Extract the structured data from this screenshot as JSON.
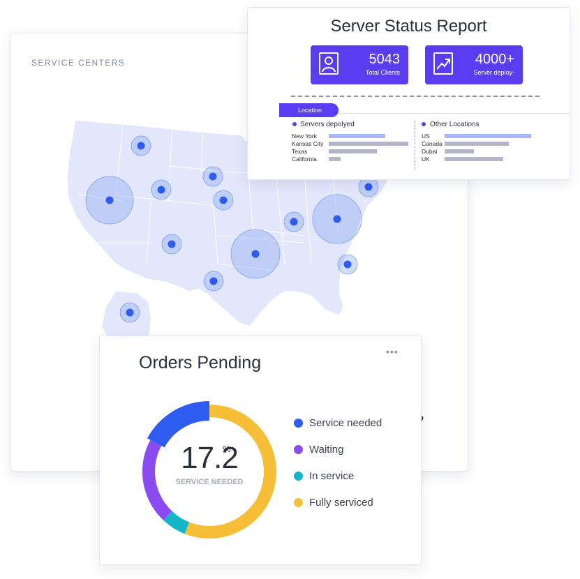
{
  "service_centers": {
    "title": "SERVICE CENTERS",
    "partial_text": "o"
  },
  "server_status": {
    "title": "Server Status Report",
    "stats": [
      {
        "value": "5043",
        "label": "Total Clients",
        "icon": "user-icon"
      },
      {
        "value": "4000+",
        "label": "Server deploy-",
        "icon": "trend-chart-icon"
      }
    ],
    "location_tab": "Location",
    "servers_deployed": {
      "heading": "Servers depolyed",
      "rows": [
        {
          "name": "New York",
          "level": 0.65
        },
        {
          "name": "Kansas City",
          "level": 0.92
        },
        {
          "name": "Texas",
          "level": 0.56
        },
        {
          "name": "California",
          "level": 0.14
        }
      ]
    },
    "other_locations": {
      "heading": "Other Locations",
      "rows": [
        {
          "name": "US",
          "level": 1.0
        },
        {
          "name": "Canada",
          "level": 0.74
        },
        {
          "name": "Dubai",
          "level": 0.34
        },
        {
          "name": "UK",
          "level": 0.68
        }
      ]
    }
  },
  "orders_pending": {
    "title": "Orders Pending",
    "menu_icon": "more-horizontal-icon",
    "value": "17.2",
    "unit": "%",
    "value_label": "SERVICE NEEDED",
    "segments": [
      {
        "name": "Service needed",
        "fraction": 0.172,
        "color": "#2e5bf0"
      },
      {
        "name": "Waiting",
        "fraction": 0.208,
        "color": "#8a4cf0"
      },
      {
        "name": "In service",
        "fraction": 0.06,
        "color": "#12b5c9"
      },
      {
        "name": "Fully serviced",
        "fraction": 0.56,
        "color": "#f7be38"
      }
    ]
  },
  "colors": {
    "accent": "#5a3df0",
    "bar_blue": "#a8b6f5",
    "bar_gray": "#b3b6c8",
    "map_fill": "#e3e7fb",
    "marker": "#2e5bf0"
  }
}
